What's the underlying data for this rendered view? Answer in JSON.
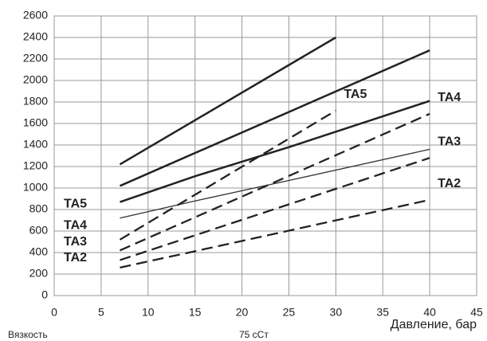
{
  "chart_data": {
    "type": "line",
    "x_label": "Давление, бар",
    "annotations": [
      "Вязкость",
      "75 сСт"
    ],
    "xlim": [
      0,
      45
    ],
    "xticks": [
      0,
      5,
      10,
      15,
      20,
      25,
      30,
      35,
      40,
      45
    ],
    "ylim": [
      0,
      2600
    ],
    "yticks": [
      0,
      200,
      400,
      600,
      800,
      1000,
      1200,
      1400,
      1600,
      1800,
      2000,
      2200,
      2400,
      2600
    ],
    "grid": true,
    "series": [
      {
        "name": "TA5",
        "color": "#222222",
        "dashed": false,
        "width": 2.5,
        "x": [
          7,
          30
        ],
        "values": [
          1220,
          2400
        ]
      },
      {
        "name": "TA4",
        "color": "#222222",
        "dashed": false,
        "width": 2.5,
        "x": [
          7,
          40
        ],
        "values": [
          1020,
          2280
        ]
      },
      {
        "name": "TA3",
        "color": "#222222",
        "dashed": false,
        "width": 2.5,
        "x": [
          7,
          15,
          25,
          40
        ],
        "values": [
          870,
          1110,
          1380,
          1810
        ]
      },
      {
        "name": "TA2",
        "color": "#333333",
        "dashed": false,
        "width": 1.3,
        "x": [
          7,
          15,
          25,
          40
        ],
        "values": [
          720,
          880,
          1070,
          1360
        ]
      },
      {
        "name": "TA5",
        "color": "#222222",
        "dashed": true,
        "width": 2.3,
        "x": [
          7,
          30
        ],
        "values": [
          520,
          1720
        ]
      },
      {
        "name": "TA4",
        "color": "#222222",
        "dashed": true,
        "width": 2.3,
        "x": [
          7,
          40
        ],
        "values": [
          420,
          1690
        ]
      },
      {
        "name": "TA3",
        "color": "#222222",
        "dashed": true,
        "width": 2.3,
        "x": [
          7,
          40
        ],
        "values": [
          330,
          1280
        ]
      },
      {
        "name": "TA2",
        "color": "#222222",
        "dashed": true,
        "width": 2.3,
        "x": [
          7,
          40
        ],
        "values": [
          260,
          890
        ]
      }
    ]
  }
}
